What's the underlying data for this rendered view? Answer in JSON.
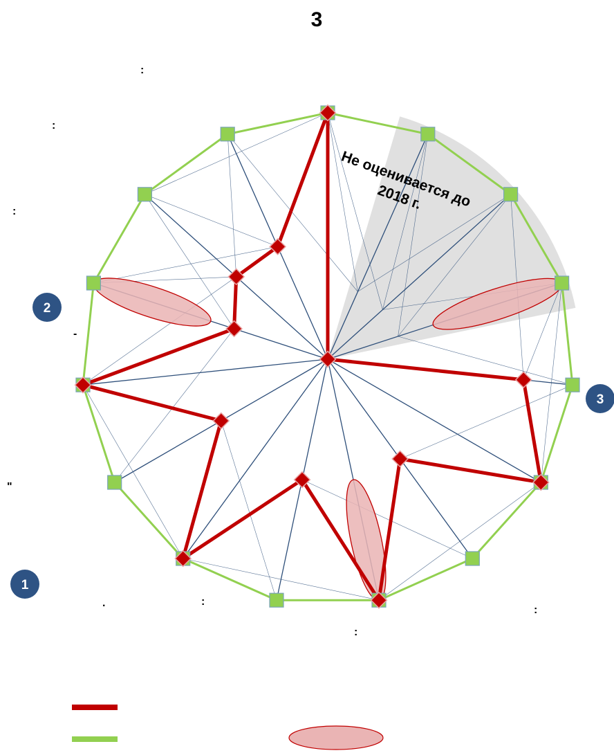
{
  "chart_data": {
    "type": "radar",
    "title": "3",
    "n_axes": 15,
    "scale_max": 10,
    "excluded_sector": {
      "label_line1": "Не оценивается до",
      "label_line2": "2018 г."
    },
    "series": [
      {
        "color": "#c00000",
        "values": [
          10,
          0,
          0,
          0,
          8,
          10,
          5,
          10,
          5,
          10,
          5,
          10,
          4,
          5,
          5
        ]
      },
      {
        "color": "#92d050",
        "values": [
          10,
          10,
          10,
          10,
          10,
          10,
          10,
          10,
          10,
          10,
          10,
          10,
          10,
          10,
          10
        ]
      }
    ],
    "highlight_color": "#eab4b4",
    "highlights": [
      {
        "axis": 3,
        "from": 4.5,
        "to": 10
      },
      {
        "axis": 7,
        "from": 5,
        "to": 10
      },
      {
        "axis": 12,
        "from": 5,
        "to": 10
      }
    ],
    "stray_marks": [
      ":",
      ":",
      ":",
      "-",
      "\"",
      ".",
      ":",
      ":",
      ":"
    ],
    "badges": [
      "1",
      "2",
      "3"
    ]
  },
  "colors": {
    "accent": "#c00000",
    "boundary": "#92d050",
    "marker_green": "#92d050",
    "web": "#2e4f7a",
    "badge": "#2e5384",
    "sector": "#e0e0e0"
  }
}
